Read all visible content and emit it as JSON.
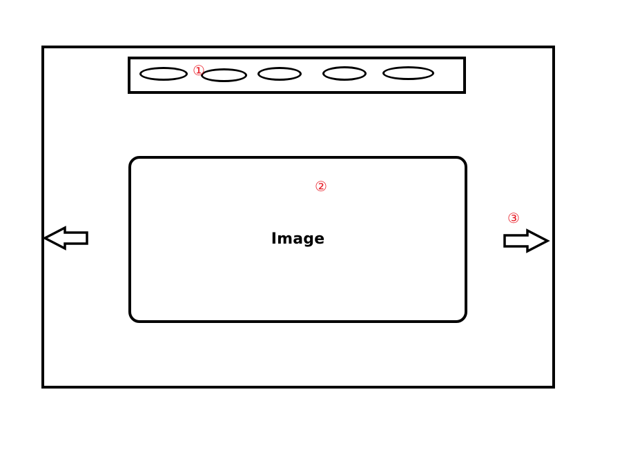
{
  "image_label": "Image",
  "markers": {
    "tabs": "①",
    "image": "②",
    "next": "③"
  },
  "colors": {
    "stroke": "#000000",
    "marker": "#e8202a",
    "background": "#ffffff"
  },
  "tabs_count": 5,
  "icons": {
    "prev": "left-arrow-icon",
    "next": "right-arrow-icon"
  }
}
